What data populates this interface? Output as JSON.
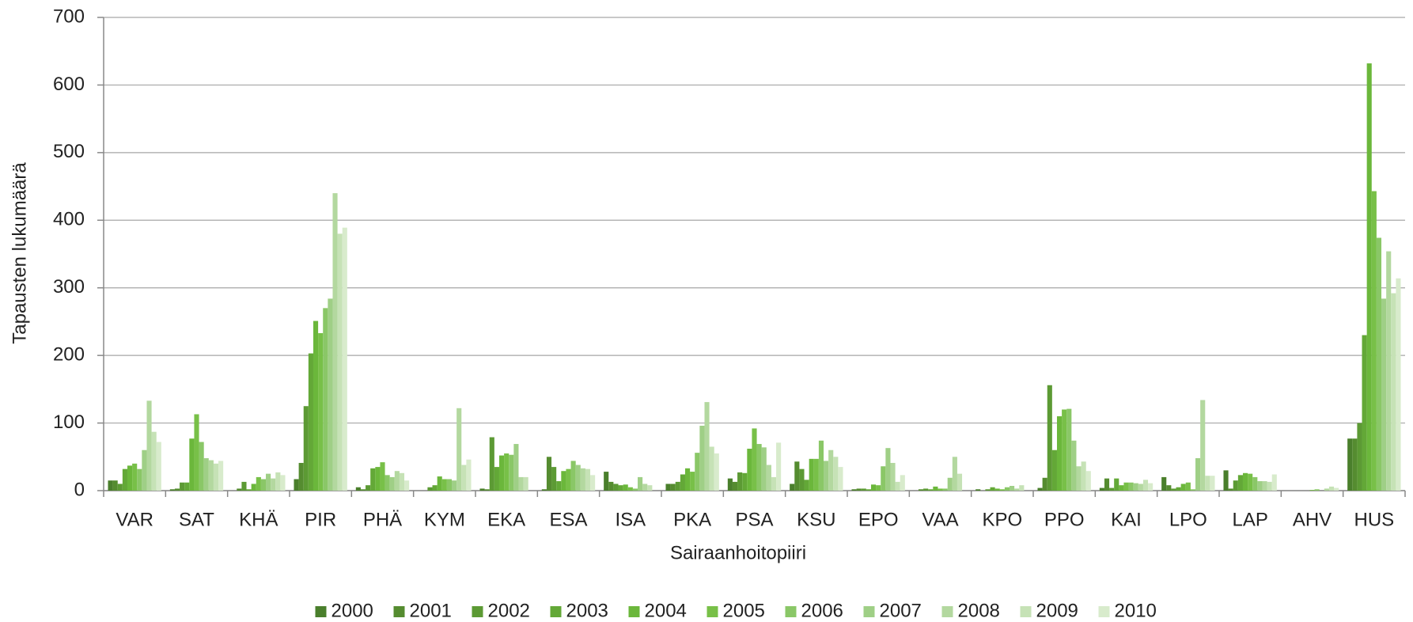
{
  "chart_data": {
    "type": "bar",
    "x_label": "Sairaanhoitopiiri",
    "y_label": "Tapausten lukumäärä",
    "categories": [
      "VAR",
      "SAT",
      "KHÄ",
      "PIR",
      "PHÄ",
      "KYM",
      "EKA",
      "ESA",
      "ISA",
      "PKA",
      "PSA",
      "KSU",
      "EPO",
      "VAA",
      "KPO",
      "PPO",
      "KAI",
      "LPO",
      "LAP",
      "AHV",
      "HUS"
    ],
    "series": [
      {
        "name": "2000",
        "color": "#4a7f2c",
        "values": [
          15,
          2,
          0,
          17,
          5,
          0,
          3,
          2,
          28,
          10,
          18,
          10,
          2,
          0,
          2,
          4,
          4,
          20,
          30,
          0,
          77
        ]
      },
      {
        "name": "2001",
        "color": "#558c30",
        "values": [
          15,
          3,
          3,
          41,
          2,
          0,
          2,
          50,
          13,
          10,
          13,
          43,
          3,
          2,
          0,
          19,
          18,
          8,
          3,
          0,
          77
        ]
      },
      {
        "name": "2002",
        "color": "#5c9a34",
        "values": [
          10,
          12,
          13,
          125,
          8,
          5,
          79,
          35,
          10,
          13,
          27,
          32,
          3,
          3,
          2,
          156,
          4,
          3,
          15,
          0,
          100
        ]
      },
      {
        "name": "2003",
        "color": "#63a837",
        "values": [
          32,
          12,
          2,
          203,
          33,
          8,
          35,
          14,
          8,
          24,
          26,
          16,
          2,
          2,
          5,
          60,
          18,
          5,
          23,
          0,
          230
        ]
      },
      {
        "name": "2004",
        "color": "#6bb73b",
        "values": [
          37,
          77,
          10,
          251,
          35,
          21,
          52,
          29,
          9,
          33,
          62,
          47,
          9,
          6,
          3,
          110,
          8,
          10,
          26,
          0,
          632
        ]
      },
      {
        "name": "2005",
        "color": "#78c048",
        "values": [
          40,
          113,
          20,
          233,
          42,
          17,
          55,
          32,
          5,
          28,
          92,
          47,
          8,
          3,
          2,
          120,
          12,
          12,
          25,
          1,
          443
        ]
      },
      {
        "name": "2006",
        "color": "#8ac767",
        "values": [
          32,
          72,
          17,
          270,
          23,
          17,
          53,
          44,
          3,
          56,
          69,
          74,
          36,
          3,
          5,
          121,
          12,
          2,
          20,
          2,
          374
        ]
      },
      {
        "name": "2007",
        "color": "#9fcf86",
        "values": [
          60,
          48,
          25,
          284,
          20,
          15,
          69,
          38,
          20,
          96,
          64,
          44,
          63,
          19,
          7,
          74,
          11,
          48,
          14,
          0,
          284
        ]
      },
      {
        "name": "2008",
        "color": "#b3d89f",
        "values": [
          133,
          45,
          18,
          440,
          29,
          122,
          20,
          33,
          10,
          131,
          38,
          60,
          41,
          50,
          3,
          36,
          10,
          134,
          14,
          3,
          354
        ]
      },
      {
        "name": "2009",
        "color": "#c6e2b6",
        "values": [
          87,
          40,
          27,
          380,
          26,
          38,
          20,
          32,
          8,
          65,
          20,
          50,
          13,
          25,
          8,
          43,
          16,
          22,
          13,
          6,
          292
        ]
      },
      {
        "name": "2010",
        "color": "#d8ebcc",
        "values": [
          72,
          44,
          23,
          389,
          15,
          46,
          0,
          23,
          0,
          55,
          71,
          35,
          23,
          0,
          0,
          29,
          11,
          22,
          24,
          4,
          314
        ]
      }
    ],
    "ylim": [
      0,
      700
    ],
    "yticks": [
      0,
      100,
      200,
      300,
      400,
      500,
      600,
      700
    ],
    "grid": true,
    "legend": "bottom"
  }
}
